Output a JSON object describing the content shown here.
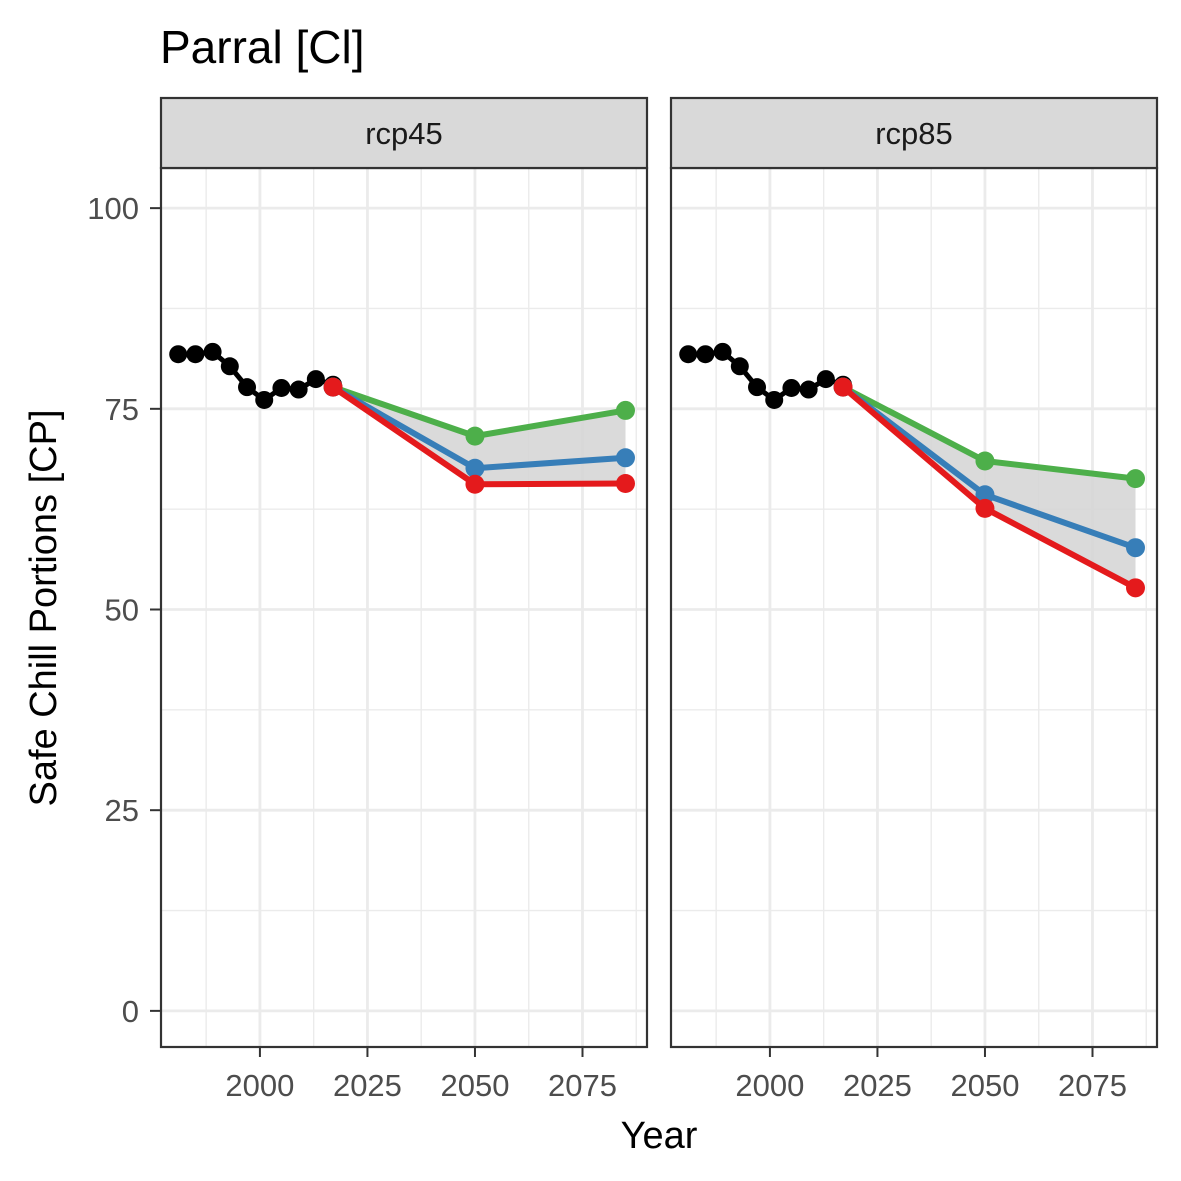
{
  "chart_data": {
    "type": "line",
    "title": "Parral [Cl]",
    "xlabel": "Year",
    "ylabel": "Safe Chill Portions [CP]",
    "xlim": [
      1977,
      2090
    ],
    "ylim": [
      -4.5,
      105
    ],
    "x_ticks": [
      2000,
      2025,
      2050,
      2075
    ],
    "y_ticks": [
      0,
      25,
      50,
      75,
      100
    ],
    "grid": true,
    "legend": "none",
    "colors": {
      "historic": "#000000",
      "low": "#e41a1c",
      "median": "#377eb8",
      "high": "#4daf4a",
      "ribbon": "#d6d6d6",
      "strip_fill": "#d9d9d9",
      "grid": "#ebebeb",
      "panel_border": "#333333"
    },
    "panels": [
      {
        "label": "rcp45",
        "historic": {
          "x": [
            1981,
            1985,
            1989,
            1993,
            1997,
            2001,
            2005,
            2009,
            2013,
            2017
          ],
          "y": [
            81.8,
            81.8,
            82.1,
            80.3,
            77.7,
            76.1,
            77.6,
            77.4,
            78.7,
            78.0
          ]
        },
        "scenarios": {
          "x": [
            2017,
            2050,
            2085
          ],
          "low": [
            77.7,
            65.6,
            65.7
          ],
          "median": [
            77.7,
            67.6,
            68.9
          ],
          "high": [
            77.7,
            71.6,
            74.8
          ]
        }
      },
      {
        "label": "rcp85",
        "historic": {
          "x": [
            1981,
            1985,
            1989,
            1993,
            1997,
            2001,
            2005,
            2009,
            2013,
            2017
          ],
          "y": [
            81.8,
            81.8,
            82.1,
            80.3,
            77.7,
            76.1,
            77.6,
            77.4,
            78.7,
            78.0
          ]
        },
        "scenarios": {
          "x": [
            2017,
            2050,
            2085
          ],
          "low": [
            77.7,
            62.6,
            52.7
          ],
          "median": [
            77.7,
            64.3,
            57.7
          ],
          "high": [
            77.7,
            68.5,
            66.3
          ]
        }
      }
    ]
  }
}
